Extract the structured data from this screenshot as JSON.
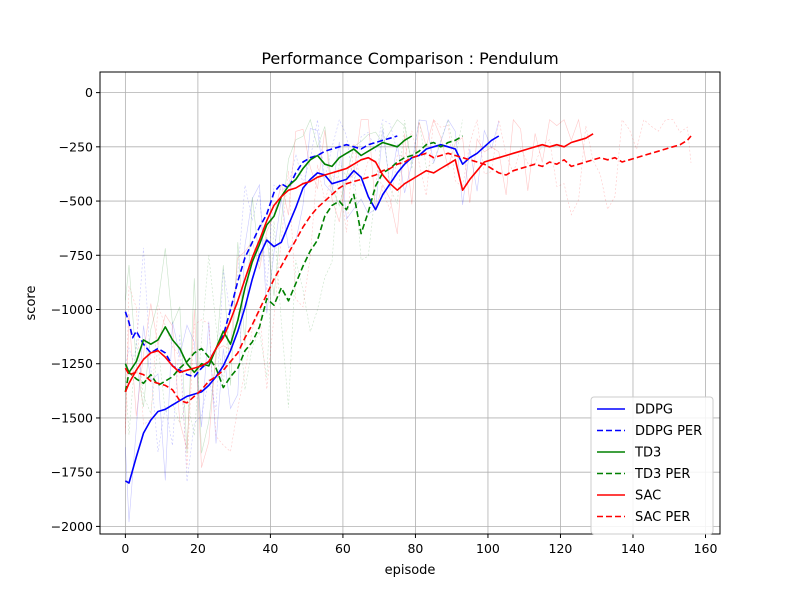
{
  "chart_data": {
    "type": "line",
    "title": "Performance Comparison : Pendulum",
    "xlabel": "episode",
    "ylabel": "score",
    "xlim": [
      -7,
      164
    ],
    "ylim": [
      -2035,
      95
    ],
    "xticks": [
      0,
      20,
      40,
      60,
      80,
      100,
      120,
      140,
      160
    ],
    "xtick_labels": [
      "0",
      "20",
      "40",
      "60",
      "80",
      "100",
      "120",
      "140",
      "160"
    ],
    "yticks": [
      0,
      -250,
      -500,
      -750,
      -1000,
      -1250,
      -1500,
      -1750,
      -2000
    ],
    "ytick_labels": [
      "0",
      "−250",
      "−500",
      "−750",
      "−1000",
      "−1250",
      "−1500",
      "−1750",
      "−2000"
    ],
    "grid": true,
    "legend_position": "lower-right",
    "series": [
      {
        "name": "DDPG",
        "color": "#0000ff",
        "dash": "solid",
        "x": [
          0,
          1,
          3,
          5,
          7,
          9,
          11,
          13,
          15,
          17,
          19,
          21,
          23,
          25,
          27,
          29,
          31,
          33,
          35,
          37,
          39,
          41,
          43,
          45,
          47,
          49,
          51,
          53,
          55,
          57,
          59,
          61,
          63,
          65,
          67,
          69,
          71,
          73,
          75,
          77,
          79,
          81,
          83,
          85,
          87,
          89,
          91,
          93,
          95,
          97,
          99,
          101,
          103
        ],
        "y": [
          -1790,
          -1800,
          -1680,
          -1570,
          -1510,
          -1470,
          -1460,
          -1440,
          -1420,
          -1400,
          -1390,
          -1380,
          -1350,
          -1310,
          -1260,
          -1190,
          -1100,
          -990,
          -860,
          -750,
          -680,
          -710,
          -690,
          -610,
          -530,
          -440,
          -400,
          -370,
          -380,
          -420,
          -410,
          -400,
          -360,
          -390,
          -480,
          -540,
          -470,
          -420,
          -370,
          -330,
          -300,
          -290,
          -260,
          -250,
          -240,
          -250,
          -260,
          -330,
          -300,
          -280,
          -250,
          -220,
          -200
        ]
      },
      {
        "name": "DDPG PER",
        "color": "#0000ff",
        "dash": "dashed",
        "x": [
          0,
          1,
          2,
          3,
          5,
          7,
          9,
          11,
          13,
          15,
          17,
          19,
          21,
          23,
          25,
          27,
          29,
          31,
          33,
          35,
          37,
          39,
          41,
          43,
          45,
          47,
          49,
          51,
          53,
          55,
          57,
          59,
          61,
          63,
          65,
          67,
          69,
          71,
          73,
          75
        ],
        "y": [
          -1010,
          -1060,
          -1130,
          -1100,
          -1160,
          -1200,
          -1180,
          -1200,
          -1260,
          -1280,
          -1300,
          -1310,
          -1270,
          -1240,
          -1180,
          -1120,
          -1000,
          -870,
          -760,
          -690,
          -620,
          -560,
          -460,
          -420,
          -440,
          -370,
          -320,
          -300,
          -290,
          -270,
          -260,
          -250,
          -240,
          -250,
          -260,
          -240,
          -230,
          -220,
          -210,
          -200
        ]
      },
      {
        "name": "TD3",
        "color": "#008000",
        "dash": "solid",
        "x": [
          0,
          1,
          3,
          5,
          7,
          9,
          11,
          13,
          15,
          17,
          19,
          21,
          23,
          25,
          27,
          29,
          31,
          33,
          35,
          37,
          39,
          41,
          43,
          45,
          47,
          49,
          51,
          53,
          55,
          57,
          59,
          61,
          63,
          65,
          67,
          69,
          71,
          73,
          75,
          77,
          79
        ],
        "y": [
          -1250,
          -1290,
          -1240,
          -1140,
          -1160,
          -1140,
          -1080,
          -1140,
          -1180,
          -1250,
          -1290,
          -1250,
          -1260,
          -1180,
          -1100,
          -1160,
          -1050,
          -900,
          -780,
          -700,
          -610,
          -570,
          -480,
          -430,
          -400,
          -350,
          -310,
          -290,
          -330,
          -340,
          -300,
          -280,
          -260,
          -290,
          -270,
          -250,
          -230,
          -240,
          -250,
          -220,
          -200
        ]
      },
      {
        "name": "TD3 PER",
        "color": "#008000",
        "dash": "dashed",
        "x": [
          0,
          1,
          3,
          5,
          7,
          9,
          11,
          13,
          15,
          17,
          19,
          21,
          23,
          25,
          27,
          29,
          31,
          33,
          35,
          37,
          39,
          41,
          43,
          45,
          47,
          49,
          51,
          53,
          55,
          57,
          59,
          61,
          63,
          65,
          67,
          69,
          71,
          73,
          75,
          77,
          79,
          81,
          83,
          85,
          87,
          89,
          91,
          93
        ],
        "y": [
          -1380,
          -1290,
          -1320,
          -1340,
          -1300,
          -1350,
          -1330,
          -1310,
          -1270,
          -1240,
          -1200,
          -1180,
          -1220,
          -1270,
          -1360,
          -1310,
          -1270,
          -1190,
          -1150,
          -1080,
          -950,
          -980,
          -900,
          -960,
          -880,
          -800,
          -730,
          -680,
          -570,
          -520,
          -500,
          -540,
          -470,
          -650,
          -550,
          -430,
          -370,
          -350,
          -320,
          -300,
          -290,
          -270,
          -240,
          -230,
          -250,
          -230,
          -220,
          -200
        ]
      },
      {
        "name": "SAC",
        "color": "#ff0000",
        "dash": "solid",
        "x": [
          0,
          1,
          3,
          5,
          7,
          9,
          11,
          13,
          15,
          17,
          19,
          21,
          23,
          25,
          27,
          29,
          31,
          33,
          35,
          37,
          39,
          41,
          43,
          45,
          47,
          49,
          51,
          53,
          55,
          57,
          59,
          61,
          63,
          65,
          67,
          69,
          71,
          73,
          75,
          77,
          79,
          81,
          83,
          85,
          87,
          89,
          91,
          93,
          95,
          97,
          99,
          101,
          103,
          105,
          107,
          109,
          111,
          113,
          115,
          117,
          119,
          121,
          123,
          125,
          127,
          129
        ],
        "y": [
          -1380,
          -1340,
          -1280,
          -1230,
          -1200,
          -1190,
          -1220,
          -1260,
          -1290,
          -1280,
          -1270,
          -1260,
          -1240,
          -1180,
          -1130,
          -1050,
          -960,
          -860,
          -760,
          -680,
          -590,
          -520,
          -480,
          -450,
          -440,
          -420,
          -410,
          -390,
          -380,
          -370,
          -360,
          -350,
          -330,
          -310,
          -300,
          -320,
          -380,
          -420,
          -450,
          -420,
          -400,
          -380,
          -360,
          -370,
          -350,
          -330,
          -310,
          -450,
          -400,
          -360,
          -320,
          -310,
          -300,
          -290,
          -280,
          -270,
          -260,
          -250,
          -240,
          -250,
          -240,
          -250,
          -230,
          -220,
          -210,
          -190
        ]
      },
      {
        "name": "SAC PER",
        "color": "#ff0000",
        "dash": "dashed",
        "x": [
          0,
          1,
          3,
          5,
          7,
          9,
          11,
          13,
          15,
          17,
          19,
          21,
          23,
          25,
          27,
          29,
          31,
          33,
          35,
          37,
          39,
          41,
          43,
          45,
          47,
          49,
          51,
          53,
          55,
          57,
          59,
          61,
          63,
          65,
          67,
          69,
          71,
          73,
          75,
          77,
          79,
          81,
          83,
          85,
          87,
          89,
          91,
          93,
          95,
          97,
          99,
          101,
          103,
          105,
          107,
          109,
          111,
          113,
          115,
          117,
          119,
          121,
          123,
          125,
          127,
          129,
          131,
          133,
          135,
          137,
          139,
          141,
          143,
          145,
          147,
          149,
          151,
          153,
          155,
          156
        ],
        "y": [
          -1270,
          -1300,
          -1290,
          -1300,
          -1330,
          -1340,
          -1350,
          -1370,
          -1420,
          -1430,
          -1400,
          -1370,
          -1330,
          -1310,
          -1280,
          -1240,
          -1200,
          -1130,
          -1070,
          -1000,
          -930,
          -860,
          -800,
          -740,
          -680,
          -620,
          -570,
          -530,
          -500,
          -470,
          -440,
          -420,
          -410,
          -400,
          -390,
          -380,
          -360,
          -350,
          -330,
          -320,
          -300,
          -290,
          -280,
          -300,
          -290,
          -280,
          -290,
          -300,
          -310,
          -320,
          -330,
          -350,
          -370,
          -380,
          -360,
          -350,
          -340,
          -330,
          -340,
          -320,
          -330,
          -310,
          -340,
          -330,
          -320,
          -310,
          -300,
          -310,
          -300,
          -320,
          -310,
          -300,
          -290,
          -280,
          -270,
          -260,
          -250,
          -240,
          -220,
          -200
        ]
      }
    ]
  }
}
